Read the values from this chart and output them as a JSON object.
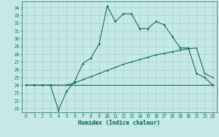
{
  "xlabel": "Humidex (Indice chaleur)",
  "bg_color": "#c5eae5",
  "line_color": "#005f5f",
  "grid_color": "#a0d0cc",
  "x_ticks": [
    0,
    1,
    2,
    3,
    4,
    5,
    6,
    7,
    8,
    9,
    10,
    11,
    12,
    13,
    14,
    15,
    16,
    17,
    18,
    19,
    20,
    21,
    22,
    23
  ],
  "y_ticks": [
    21,
    22,
    23,
    24,
    25,
    26,
    27,
    28,
    29,
    30,
    31,
    32,
    33,
    34
  ],
  "ylim": [
    20.5,
    34.8
  ],
  "xlim": [
    -0.5,
    23.5
  ],
  "curve1_x": [
    0,
    1,
    2,
    3,
    4,
    5,
    6,
    7,
    8,
    9,
    10,
    11,
    12,
    13,
    14,
    15,
    16,
    17,
    18,
    19,
    20,
    21,
    22,
    23
  ],
  "curve1_y": [
    24,
    24,
    24,
    24,
    20.8,
    23.2,
    24.5,
    26.8,
    27.5,
    29.3,
    34.2,
    32.2,
    33.2,
    33.2,
    31.3,
    31.3,
    32.2,
    31.8,
    30.3,
    28.8,
    28.8,
    25.5,
    25.0,
    24.0
  ],
  "curve2_x": [
    0,
    23
  ],
  "curve2_y": [
    24,
    24
  ],
  "curve3_x": [
    0,
    1,
    2,
    3,
    4,
    5,
    6,
    7,
    8,
    9,
    10,
    11,
    12,
    13,
    14,
    15,
    16,
    17,
    18,
    19,
    20,
    21,
    22,
    23
  ],
  "curve3_y": [
    24,
    24,
    24,
    24,
    24,
    24,
    24.3,
    24.7,
    25.1,
    25.5,
    25.9,
    26.3,
    26.7,
    27.0,
    27.3,
    27.6,
    27.9,
    28.1,
    28.3,
    28.5,
    28.7,
    28.8,
    25.5,
    25.0
  ]
}
